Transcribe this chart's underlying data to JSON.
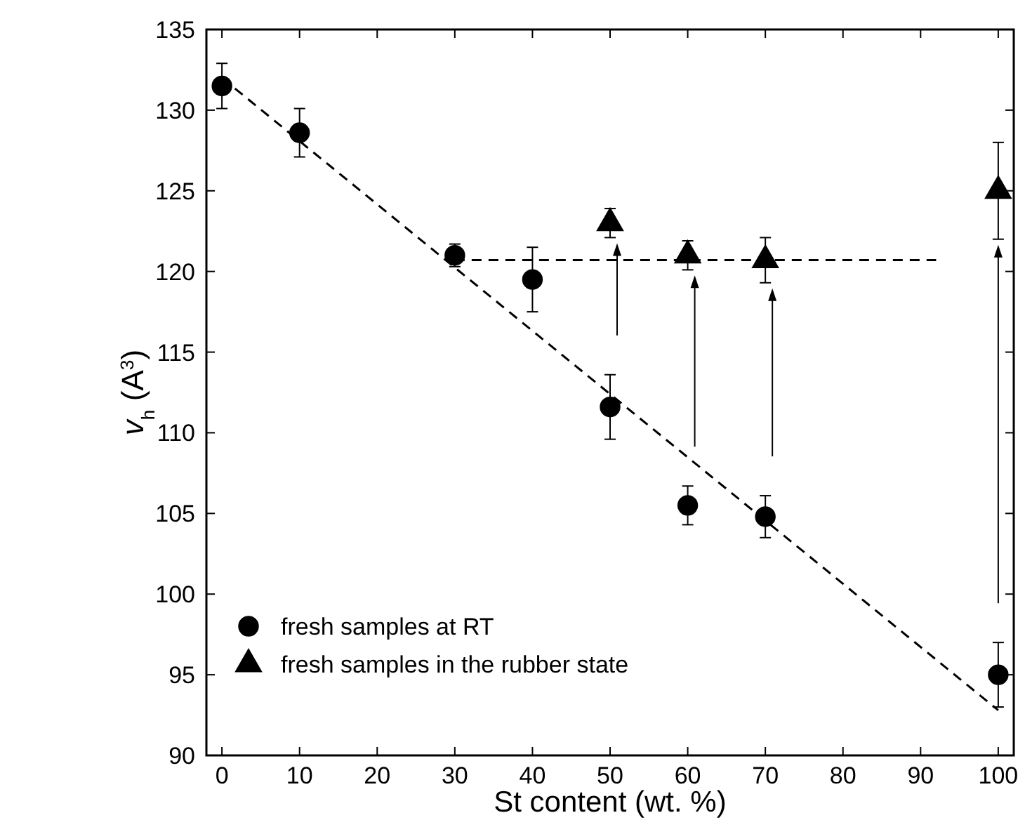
{
  "chart_data": {
    "type": "scatter",
    "xlabel": "St content (wt. %)",
    "ylabel": "v$_{h}$ (A$^{3}$)",
    "xlim": [
      -2,
      102
    ],
    "ylim": [
      90,
      135
    ],
    "xticks": [
      0,
      10,
      20,
      30,
      40,
      50,
      60,
      70,
      80,
      90,
      100
    ],
    "yticks": [
      90,
      95,
      100,
      105,
      110,
      115,
      120,
      125,
      130,
      135
    ],
    "grid": false,
    "legend": "bottom left",
    "series": [
      {
        "name": "fresh samples at RT",
        "marker": "circle",
        "color": "#000000",
        "x": [
          0,
          10,
          30,
          40,
          50,
          60,
          70,
          100
        ],
        "values": [
          131.5,
          128.6,
          121,
          119.5,
          111.6,
          105.5,
          104.8,
          95
        ],
        "errors": [
          1.4,
          1.5,
          0.7,
          2,
          2,
          1.2,
          1.3,
          2
        ]
      },
      {
        "name": "fresh samples in the rubber state",
        "marker": "triangle",
        "color": "#000000",
        "x": [
          50,
          60,
          70,
          100
        ],
        "values": [
          123,
          121,
          120.7,
          125
        ],
        "errors": [
          0.9,
          0.9,
          1.4,
          3
        ]
      },
      {
        "type": "line",
        "marker": "none",
        "line_style": "dashed",
        "color": "#000000",
        "x": [
          0,
          100
        ],
        "values": [
          132,
          92.8
        ]
      },
      {
        "type": "line",
        "marker": "none",
        "line_style": "dashed",
        "color": "#000000",
        "x": [
          30,
          92
        ],
        "values": [
          120.7,
          120.7
        ]
      }
    ]
  }
}
